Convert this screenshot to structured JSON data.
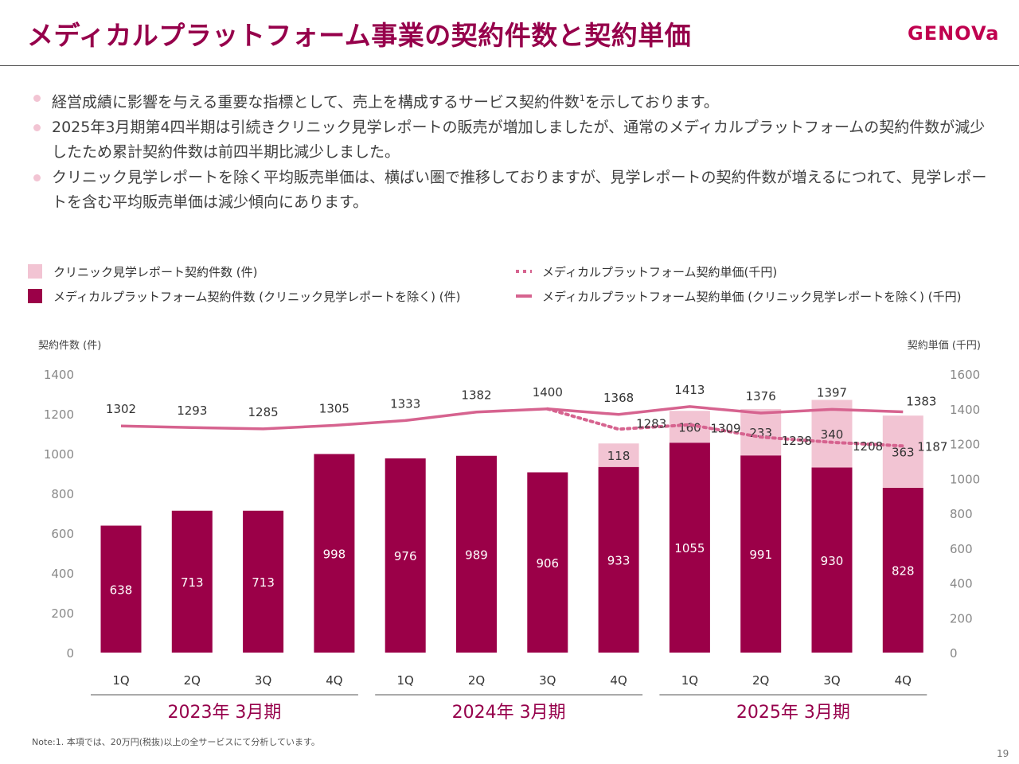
{
  "header": {
    "title": "メディカルプラットフォーム事業の契約件数と契約単価",
    "logo": "GENOVa"
  },
  "bullets": [
    {
      "text": "経営成績に影響を与える重要な指標として、売上を構成するサービス契約件数",
      "sup": "1",
      "after": "を示しております。"
    },
    {
      "text": "2025年3月期第4四半期は引続きクリニック見学レポートの販売が増加しましたが、通常のメディカルプラットフォームの契約件数が減少したため累計契約件数は前四半期比減少しました。",
      "sup": "",
      "after": ""
    },
    {
      "text": "クリニック見学レポートを除く平均販売単価は、横ばい圏で推移しておりますが、見学レポートの契約件数が増えるにつれて、見学レポートを含む平均販売単価は減少傾向にあります。",
      "sup": "",
      "after": ""
    }
  ],
  "chart_data": {
    "type": "bar",
    "stacked": true,
    "categories": [
      "1Q",
      "2Q",
      "3Q",
      "4Q",
      "1Q",
      "2Q",
      "3Q",
      "4Q",
      "1Q",
      "2Q",
      "3Q",
      "4Q"
    ],
    "groups": [
      {
        "label": "2023年 3月期",
        "start": 0,
        "end": 3
      },
      {
        "label": "2024年 3月期",
        "start": 4,
        "end": 7
      },
      {
        "label": "2025年 3月期",
        "start": 8,
        "end": 11
      }
    ],
    "series": [
      {
        "name": "メディカルプラットフォーム契約件数 (クリニック見学レポートを除く) (件)",
        "kind": "bar",
        "axis": "left",
        "color": "#9b0048",
        "values": [
          638,
          713,
          713,
          998,
          976,
          989,
          906,
          933,
          1055,
          991,
          930,
          828
        ]
      },
      {
        "name": "クリニック見学レポート契約件数 (件)",
        "kind": "bar",
        "axis": "left",
        "color": "#f2c4d3",
        "values": [
          null,
          null,
          null,
          null,
          null,
          null,
          null,
          118,
          160,
          233,
          340,
          363
        ]
      },
      {
        "name": "メディカルプラットフォーム契約単価(千円)",
        "kind": "line",
        "style": "dotted",
        "axis": "right",
        "color": "#d6638f",
        "values": [
          null,
          null,
          null,
          null,
          null,
          null,
          1400,
          1283,
          1309,
          1238,
          1208,
          1187
        ]
      },
      {
        "name": "メディカルプラットフォーム契約単価 (クリニック見学レポートを除く) (千円)",
        "kind": "line",
        "style": "solid",
        "axis": "right",
        "color": "#d6638f",
        "values": [
          1302,
          1293,
          1285,
          1305,
          1333,
          1382,
          1400,
          1368,
          1413,
          1376,
          1397,
          1383
        ]
      }
    ],
    "y_left": {
      "label": "契約件数 (件)",
      "min": 0,
      "max": 1400,
      "ticks": [
        0,
        200,
        400,
        600,
        800,
        1000,
        1200,
        1400
      ]
    },
    "y_right": {
      "label": "契約単価 (千円)",
      "min": 0,
      "max": 1600,
      "ticks": [
        0,
        200,
        400,
        600,
        800,
        1000,
        1200,
        1400,
        1600
      ]
    },
    "grid": false,
    "legend_position": "top"
  },
  "footer": {
    "note": "Note:1. 本項では、20万円(税抜)以上の全サービスにて分析しています。",
    "page_number": "19"
  }
}
